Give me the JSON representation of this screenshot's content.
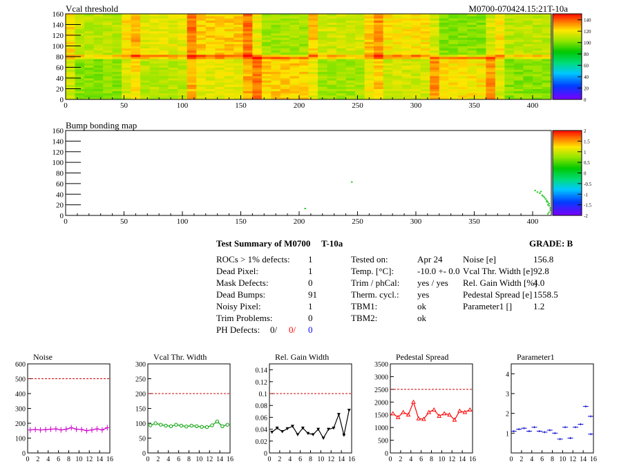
{
  "header": {
    "title_left": "Vcal threshold",
    "title_right": "M0700-070424.15:21T-10a",
    "bump_title": "Bump bonding map"
  },
  "chart_data": [
    {
      "type": "heatmap",
      "title": "Vcal threshold",
      "x_ticks": [
        "0",
        "50",
        "100",
        "150",
        "200",
        "250",
        "300",
        "350",
        "400"
      ],
      "y_ticks": [
        "0",
        "20",
        "40",
        "60",
        "80",
        "100",
        "120",
        "140",
        "160"
      ],
      "xlim": [
        0,
        416
      ],
      "ylim": [
        0,
        160
      ],
      "colorbar_ticks": [
        "0",
        "20",
        "40",
        "60",
        "80",
        "100",
        "120",
        "140"
      ],
      "typical_value": 100,
      "grid": false
    },
    {
      "type": "scatter",
      "title": "Bump bonding map",
      "x_ticks": [
        "0",
        "50",
        "100",
        "150",
        "200",
        "250",
        "300",
        "350",
        "400"
      ],
      "y_ticks": [
        "0",
        "20",
        "40",
        "60",
        "80",
        "100",
        "120",
        "140",
        "160"
      ],
      "xlim": [
        0,
        416
      ],
      "ylim": [
        0,
        160
      ],
      "colorbar_ticks": [
        "-2",
        "-1.5",
        "-1",
        "-0.5",
        "0",
        "0.5",
        "1",
        "1.5",
        "2"
      ],
      "points": [
        [
          205,
          13
        ],
        [
          245,
          63
        ],
        [
          402,
          47
        ],
        [
          404,
          44
        ],
        [
          406,
          42
        ],
        [
          408,
          38
        ],
        [
          410,
          34
        ],
        [
          411,
          31
        ],
        [
          412,
          28
        ],
        [
          413,
          25
        ],
        [
          414,
          22
        ],
        [
          413,
          20
        ],
        [
          414,
          18
        ],
        [
          415,
          14
        ],
        [
          415,
          10
        ],
        [
          414,
          6
        ],
        [
          413,
          3
        ],
        [
          407,
          45
        ],
        [
          409,
          36
        ],
        [
          412,
          26
        ]
      ]
    },
    {
      "type": "line",
      "title": "Noise",
      "x": [
        0,
        1,
        2,
        3,
        4,
        5,
        6,
        7,
        8,
        9,
        10,
        11,
        12,
        13,
        14,
        15
      ],
      "values": [
        155,
        158,
        155,
        157,
        160,
        162,
        155,
        160,
        170,
        160,
        158,
        150,
        155,
        162,
        155,
        170
      ],
      "ylim": [
        0,
        600
      ],
      "x_ticks": [
        "0",
        "2",
        "4",
        "6",
        "8",
        "10",
        "12",
        "14",
        "16"
      ],
      "y_ticks": [
        "0",
        "100",
        "200",
        "300",
        "400",
        "500",
        "600"
      ],
      "ref_line": 500
    },
    {
      "type": "line",
      "title": "Vcal Thr. Width",
      "x": [
        0,
        1,
        2,
        3,
        4,
        5,
        6,
        7,
        8,
        9,
        10,
        11,
        12,
        13,
        14,
        15
      ],
      "values": [
        93,
        100,
        95,
        92,
        90,
        95,
        92,
        89,
        92,
        90,
        88,
        87,
        93,
        106,
        90,
        95
      ],
      "ylim": [
        0,
        300
      ],
      "x_ticks": [
        "0",
        "2",
        "4",
        "6",
        "8",
        "10",
        "12",
        "14",
        "16"
      ],
      "y_ticks": [
        "0",
        "50",
        "100",
        "150",
        "200",
        "250",
        "300"
      ],
      "ref_line": 200
    },
    {
      "type": "line",
      "title": "Rel. Gain Width",
      "x": [
        0,
        1,
        2,
        3,
        4,
        5,
        6,
        7,
        8,
        9,
        10,
        11,
        12,
        13,
        14,
        15
      ],
      "values": [
        0.035,
        0.042,
        0.036,
        0.041,
        0.045,
        0.031,
        0.042,
        0.033,
        0.031,
        0.04,
        0.025,
        0.04,
        0.042,
        0.065,
        0.03,
        0.072
      ],
      "ylim": [
        0,
        0.15
      ],
      "x_ticks": [
        "0",
        "2",
        "4",
        "6",
        "8",
        "10",
        "12",
        "14",
        "16"
      ],
      "y_ticks": [
        "0",
        "0.02",
        "0.04",
        "0.06",
        "0.08",
        "0.1",
        "0.12",
        "0.14"
      ],
      "ref_line": 0.1
    },
    {
      "type": "line",
      "title": "Pedestal Spread",
      "x": [
        0,
        1,
        2,
        3,
        4,
        5,
        6,
        7,
        8,
        9,
        10,
        11,
        12,
        13,
        14,
        15
      ],
      "values": [
        1550,
        1400,
        1600,
        1500,
        2000,
        1350,
        1330,
        1600,
        1700,
        1450,
        1550,
        1500,
        1300,
        1650,
        1600,
        1700
      ],
      "ylim": [
        0,
        3500
      ],
      "x_ticks": [
        "0",
        "2",
        "4",
        "6",
        "8",
        "10",
        "12",
        "14",
        "16"
      ],
      "y_ticks": [
        "0",
        "500",
        "1000",
        "1500",
        "2000",
        "2500",
        "3000",
        "3500"
      ],
      "ref_line": 2500
    },
    {
      "type": "scatter",
      "title": "Parameter1",
      "x": [
        0,
        1,
        2,
        3,
        4,
        5,
        6,
        7,
        8,
        9,
        10,
        11,
        12,
        13,
        14,
        15
      ],
      "values": [
        1.1,
        1.2,
        1.25,
        1.1,
        1.3,
        1.1,
        1.05,
        1.15,
        1.0,
        0.7,
        1.3,
        0.75,
        1.3,
        1.45,
        2.35,
        0.95
      ],
      "extra_point": [
        16,
        1.85
      ],
      "ylim": [
        0,
        4.5
      ],
      "x_ticks": [
        "0",
        "2",
        "4",
        "6",
        "8",
        "10",
        "12",
        "14",
        "16"
      ],
      "y_ticks": [
        "1",
        "2",
        "3",
        "4"
      ]
    }
  ],
  "summary": {
    "heading": "Test Summary of M0700",
    "temp_label": "T-10a",
    "grade": "GRADE:  B",
    "left_rows": [
      {
        "label": "ROCs > 1% defects:",
        "value": "1"
      },
      {
        "label": "Dead Pixel:",
        "value": "1"
      },
      {
        "label": "Mask Defects:",
        "value": "0"
      },
      {
        "label": "Dead Bumps:",
        "value": "91"
      },
      {
        "label": "Noisy Pixel:",
        "value": "1"
      },
      {
        "label": "Trim Problems:",
        "value": "0"
      }
    ],
    "ph_label": "PH Defects:",
    "ph_values": [
      "0/",
      "0/",
      "0"
    ],
    "ph_colors": [
      "#000000",
      "#ff0000",
      "#0000ff"
    ],
    "mid_rows": [
      {
        "label": "Tested on:",
        "value": "Apr 24"
      },
      {
        "label": "Temp. [°C]:",
        "value": "-10.0 +- 0.0"
      },
      {
        "label": "Trim / phCal:",
        "value": "yes / yes"
      },
      {
        "label": "Therm. cycl.:",
        "value": "yes"
      },
      {
        "label": "TBM1:",
        "value": "ok"
      },
      {
        "label": "TBM2:",
        "value": "ok"
      }
    ],
    "right_rows": [
      {
        "label": "Noise [e]",
        "value": "156.8"
      },
      {
        "label": "Vcal Thr. Width [e]",
        "value": "92.8"
      },
      {
        "label": "Rel. Gain Width [%]",
        "value": "4.0"
      },
      {
        "label": "Pedestal Spread [e]",
        "value": "1558.5"
      },
      {
        "label": "Parameter1 []",
        "value": "1.2"
      }
    ]
  },
  "colors": {
    "noise": "#cc00cc",
    "vcal": "#00a000",
    "gain": "#000000",
    "pedestal": "#ff0000",
    "param": "#0000cc",
    "ref": "#cc0000"
  }
}
